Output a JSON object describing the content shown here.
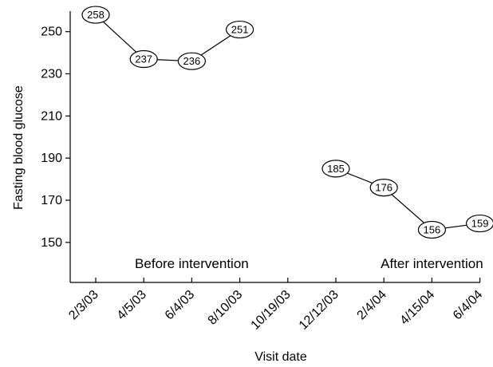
{
  "chart_data": {
    "type": "line",
    "title": "",
    "xlabel": "Visit date",
    "ylabel": "Fasting blood glucose",
    "x_categories": [
      "2/3/03",
      "4/5/03",
      "6/4/03",
      "8/10/03",
      "10/19/03",
      "12/12/03",
      "2/4/04",
      "4/15/04",
      "6/4/04"
    ],
    "yticks": [
      150,
      170,
      190,
      210,
      230,
      250
    ],
    "ylim": [
      131,
      262
    ],
    "grid": false,
    "series": [
      {
        "points": [
          {
            "x": 0,
            "y": 258,
            "label": "258"
          },
          {
            "x": 1,
            "y": 237,
            "label": "237"
          },
          {
            "x": 2,
            "y": 236,
            "label": "236"
          },
          {
            "x": 3,
            "y": 251,
            "label": "251"
          }
        ]
      },
      {
        "points": [
          {
            "x": 5,
            "y": 185,
            "label": "185"
          },
          {
            "x": 6,
            "y": 176,
            "label": "176"
          },
          {
            "x": 7,
            "y": 156,
            "label": "156"
          },
          {
            "x": 8,
            "y": 159,
            "label": "159"
          }
        ]
      }
    ],
    "annotations": [
      {
        "text": "Before intervention",
        "x": 2,
        "y": 140
      },
      {
        "text": "After intervention",
        "x": 7,
        "y": 140
      }
    ]
  }
}
